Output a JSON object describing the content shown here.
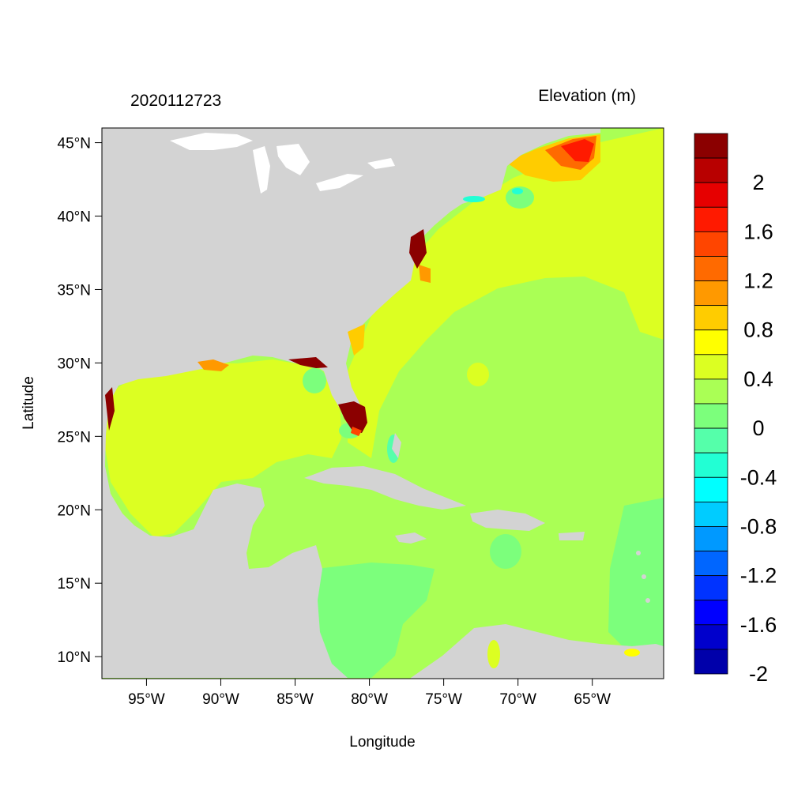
{
  "map": {
    "left_title": "2020112723",
    "right_title": "Elevation (m)",
    "xlabel": "Longitude",
    "ylabel": "Latitude",
    "lon_range": [
      -98,
      -60.2
    ],
    "lat_range": [
      8.5,
      46
    ],
    "lon_ticks": [
      {
        "value": -95,
        "label": "95°W"
      },
      {
        "value": -90,
        "label": "90°W"
      },
      {
        "value": -85,
        "label": "85°W"
      },
      {
        "value": -80,
        "label": "80°W"
      },
      {
        "value": -75,
        "label": "75°W"
      },
      {
        "value": -70,
        "label": "70°W"
      },
      {
        "value": -65,
        "label": "65°W"
      }
    ],
    "lat_ticks": [
      {
        "value": 45,
        "label": "45°N"
      },
      {
        "value": 40,
        "label": "40°N"
      },
      {
        "value": 35,
        "label": "35°N"
      },
      {
        "value": 30,
        "label": "30°N"
      },
      {
        "value": 25,
        "label": "25°N"
      },
      {
        "value": 20,
        "label": "20°N"
      },
      {
        "value": 15,
        "label": "15°N"
      },
      {
        "value": 10,
        "label": "10°N"
      }
    ],
    "land_color": "#d3d3d3"
  },
  "colorbar": {
    "levels_top_to_bottom": [
      {
        "color": "#8b0000"
      },
      {
        "color": "#b80000",
        "label": "2"
      },
      {
        "color": "#e60000"
      },
      {
        "color": "#ff1a00",
        "label": "1.6"
      },
      {
        "color": "#ff4500"
      },
      {
        "color": "#ff6a00",
        "label": "1.2"
      },
      {
        "color": "#ff9900"
      },
      {
        "color": "#ffcc00",
        "label": "0.8"
      },
      {
        "color": "#ffff00"
      },
      {
        "color": "#dcff22",
        "label": "0.4"
      },
      {
        "color": "#aaff55"
      },
      {
        "color": "#7cff7c",
        "label": "0"
      },
      {
        "color": "#55ffaa"
      },
      {
        "color": "#22ffd4",
        "label": "-0.4"
      },
      {
        "color": "#00ffff"
      },
      {
        "color": "#00ccff",
        "label": "-0.8"
      },
      {
        "color": "#0099ff"
      },
      {
        "color": "#0066ff",
        "label": "-1.2"
      },
      {
        "color": "#0033ff"
      },
      {
        "color": "#0000ff",
        "label": "-1.6"
      },
      {
        "color": "#0000cc"
      },
      {
        "color": "#0000aa",
        "label": "-2"
      }
    ]
  }
}
